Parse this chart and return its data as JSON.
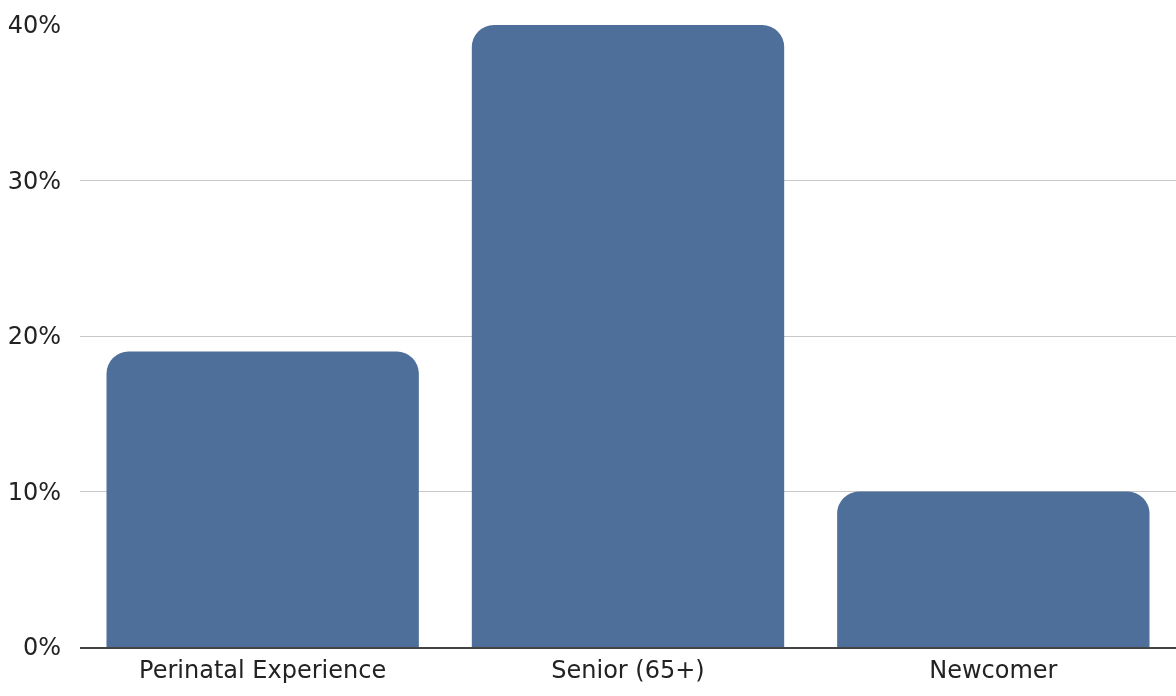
{
  "chart_data": {
    "type": "bar",
    "categories": [
      "Perinatal Experience",
      "Senior (65+)",
      "Newcomer"
    ],
    "values": [
      19,
      40,
      10
    ],
    "color": "#4f6f9b",
    "ylim": [
      0,
      40
    ],
    "yticks": [
      {
        "value": 0,
        "label": "0%"
      },
      {
        "value": 10,
        "label": "10%"
      },
      {
        "value": 20,
        "label": "20%"
      },
      {
        "value": 30,
        "label": "30%"
      },
      {
        "value": 40,
        "label": "40%"
      }
    ],
    "grid": "y"
  }
}
